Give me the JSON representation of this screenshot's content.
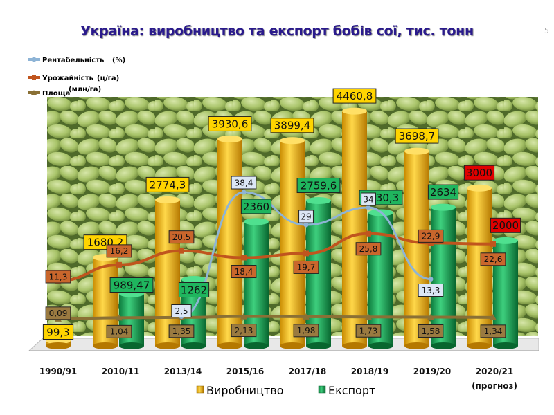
{
  "title": "Україна: виробництво та експорт бобів сої, тис. тонн",
  "page_number": "5",
  "legend": {
    "production": "Виробництво",
    "export": "Експорт",
    "profitability_name": "Рентабельність",
    "profitability_unit": "(%)",
    "yield_name": "Урожайність",
    "yield_unit": "(ц/га)",
    "area_name": "Площа",
    "area_unit": "(млн/га)"
  },
  "colors": {
    "production": "#f7b500",
    "export": "#1faa5a",
    "profitability": "#8eb4d6",
    "yield": "#c0551e",
    "area": "#8a7035",
    "forecast_label": "#e00000"
  },
  "chart_data": {
    "type": "bar",
    "title": "Україна: виробництво та експорт бобів сої, тис. тонн",
    "categories": [
      "1990/91",
      "2010/11",
      "2013/14",
      "2015/16",
      "2017/18",
      "2018/19",
      "2019/20",
      "2020/21"
    ],
    "category_note": {
      "index": 7,
      "text": "(прогноз)"
    },
    "forecast_index": 7,
    "series": [
      {
        "name": "Виробництво",
        "type": "bar",
        "values": [
          99.3,
          1680.2,
          2774.3,
          3930.6,
          3899.4,
          4460.8,
          3698.7,
          3000
        ],
        "labels": [
          "99,3",
          "1680,2",
          "2774,3",
          "3930,6",
          "3899,4",
          "4460,8",
          "3698,7",
          "3000"
        ]
      },
      {
        "name": "Експорт",
        "type": "bar",
        "values": [
          null,
          989.47,
          1262,
          2360,
          2759.6,
          2530.3,
          2634,
          2000
        ],
        "labels": [
          "",
          "989,47",
          "1262",
          "2360",
          "2759,6",
          "2530,3",
          "2634",
          "2000"
        ]
      },
      {
        "name": "Рентабельність (%)",
        "type": "line",
        "values": [
          null,
          null,
          2.5,
          38.4,
          29,
          34,
          13.3,
          null
        ],
        "labels": [
          "",
          "",
          "2,5",
          "38,4",
          "29",
          "34",
          "13,3",
          ""
        ]
      },
      {
        "name": "Урожайність (ц/га)",
        "type": "line",
        "values": [
          11.3,
          16.2,
          20.5,
          18.4,
          19.7,
          25.8,
          22.9,
          22.6
        ],
        "labels": [
          "11,3",
          "16,2",
          "20,5",
          "18,4",
          "19,7",
          "25,8",
          "22,9",
          "22,6"
        ]
      },
      {
        "name": "Площа (млн/га)",
        "type": "line",
        "values": [
          0.09,
          1.04,
          1.35,
          2.13,
          1.98,
          1.73,
          1.58,
          1.34
        ],
        "labels": [
          "0,09",
          "1,04",
          "1,35",
          "2,13",
          "1,98",
          "1,73",
          "1,58",
          "1,34"
        ]
      }
    ],
    "ylim": [
      0,
      4600
    ],
    "grid": false,
    "legend_position": "top-left and bottom"
  }
}
